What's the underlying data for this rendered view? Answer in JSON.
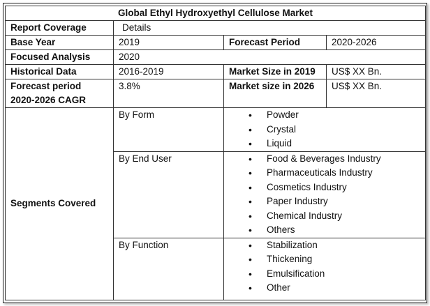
{
  "title": "Global Ethyl Hydroxyethyl Cellulose Market",
  "rows": {
    "report_coverage": {
      "label": "Report Coverage",
      "value": "Details"
    },
    "base_year": {
      "label": "Base Year",
      "value": "2019"
    },
    "forecast_period": {
      "label": "Forecast Period",
      "value": "2020-2026"
    },
    "focused_analysis": {
      "label": "Focused Analysis",
      "value": "2020"
    },
    "historical_data": {
      "label": "Historical Data",
      "value": "2016-2019"
    },
    "market_size_2019": {
      "label": "Market Size in 2019",
      "value": "US$ XX Bn."
    },
    "forecast_cagr": {
      "label_line1": "Forecast period",
      "label_line2": "2020-2026 CAGR",
      "value": "3.8%"
    },
    "market_size_2026": {
      "label": "Market size in 2026",
      "value": "US$ XX Bn."
    }
  },
  "segments": {
    "label": "Segments Covered",
    "by_form": {
      "label": "By Form",
      "items": [
        "Powder",
        "Crystal",
        "Liquid"
      ]
    },
    "by_end_user": {
      "label": "By End User",
      "items": [
        "Food & Beverages Industry",
        "Pharmaceuticals Industry",
        "Cosmetics Industry",
        "Paper Industry",
        "Chemical Industry",
        "Others"
      ]
    },
    "by_function": {
      "label": "By Function",
      "items": [
        "Stabilization",
        "Thickening",
        "Emulsification",
        "Other"
      ]
    }
  }
}
